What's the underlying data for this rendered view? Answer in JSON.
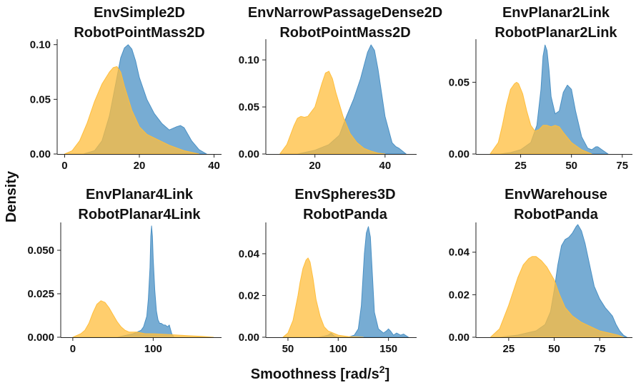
{
  "figure": {
    "xlabel": "Smoothness [rad/s",
    "xlabel_sup": "2",
    "xlabel_close": "]",
    "ylabel": "Density"
  },
  "colors": {
    "series_a": "#4a90c4",
    "series_b": "#ffbe3c",
    "overlap_note": "overlap appears olive/brown"
  },
  "chart_data": [
    {
      "type": "area",
      "title": [
        "EnvSimple2D",
        "RobotPointMass2D"
      ],
      "xlim": [
        -2,
        42
      ],
      "ylim": [
        0,
        0.105
      ],
      "xticks": [
        0,
        20,
        40
      ],
      "xtick_labels": [
        "0",
        "20",
        "40"
      ],
      "yticks": [
        0,
        0.05,
        0.1
      ],
      "ytick_labels": [
        "0.00",
        "0.05",
        "0.10"
      ],
      "series": [
        {
          "color": "#4a90c4",
          "x": [
            5,
            8,
            10,
            12,
            14,
            15,
            16,
            17,
            18,
            19,
            20,
            22,
            24,
            26,
            28,
            30,
            31,
            32,
            34,
            36,
            38
          ],
          "y": [
            0,
            0.003,
            0.012,
            0.035,
            0.07,
            0.088,
            0.097,
            0.1,
            0.096,
            0.085,
            0.07,
            0.05,
            0.037,
            0.028,
            0.022,
            0.025,
            0.026,
            0.024,
            0.012,
            0.004,
            0
          ]
        },
        {
          "color": "#ffbe3c",
          "x": [
            0,
            2,
            4,
            6,
            8,
            10,
            12,
            13,
            14,
            15,
            16,
            18,
            20,
            22,
            25,
            28,
            32,
            36
          ],
          "y": [
            0,
            0.003,
            0.012,
            0.028,
            0.048,
            0.064,
            0.075,
            0.079,
            0.08,
            0.075,
            0.062,
            0.04,
            0.025,
            0.018,
            0.013,
            0.008,
            0.003,
            0
          ]
        }
      ]
    },
    {
      "type": "area",
      "title": [
        "EnvNarrowPassageDense2D",
        "RobotPointMass2D"
      ],
      "xlim": [
        6,
        49
      ],
      "ylim": [
        0,
        0.122
      ],
      "xticks": [
        20,
        40
      ],
      "xtick_labels": [
        "20",
        "40"
      ],
      "yticks": [
        0,
        0.05,
        0.1
      ],
      "ytick_labels": [
        "0.00",
        "0.05",
        "0.10"
      ],
      "series": [
        {
          "color": "#4a90c4",
          "x": [
            15,
            20,
            24,
            27,
            29,
            31,
            33,
            35,
            36,
            37,
            38,
            40,
            42,
            43,
            44,
            46
          ],
          "y": [
            0,
            0.004,
            0.01,
            0.02,
            0.04,
            0.058,
            0.08,
            0.108,
            0.116,
            0.11,
            0.09,
            0.04,
            0.012,
            0.008,
            0.006,
            0
          ]
        },
        {
          "color": "#ffbe3c",
          "x": [
            10,
            12,
            14,
            15,
            16,
            17,
            18,
            20,
            22,
            23,
            24,
            25,
            26,
            28,
            30,
            32,
            34,
            36,
            38,
            40
          ],
          "y": [
            0,
            0.01,
            0.03,
            0.038,
            0.04,
            0.039,
            0.04,
            0.05,
            0.075,
            0.086,
            0.088,
            0.08,
            0.065,
            0.04,
            0.022,
            0.012,
            0.006,
            0.003,
            0.001,
            0
          ]
        }
      ]
    },
    {
      "type": "area",
      "title": [
        "EnvPlanar2Link",
        "RobotPlanar2Link"
      ],
      "xlim": [
        3,
        80
      ],
      "ylim": [
        0,
        0.08
      ],
      "xticks": [
        25,
        50,
        75
      ],
      "xtick_labels": [
        "25",
        "50",
        "75"
      ],
      "yticks": [
        0,
        0.05
      ],
      "ytick_labels": [
        "0.00",
        "0.05"
      ],
      "series": [
        {
          "color": "#4a90c4",
          "x": [
            15,
            20,
            25,
            30,
            33,
            35,
            36,
            37,
            38,
            39,
            40,
            42,
            44,
            46,
            48,
            50,
            52,
            55,
            58,
            60,
            62,
            63,
            65,
            68
          ],
          "y": [
            0,
            0.001,
            0.003,
            0.008,
            0.02,
            0.045,
            0.068,
            0.076,
            0.072,
            0.058,
            0.04,
            0.028,
            0.03,
            0.043,
            0.048,
            0.045,
            0.03,
            0.012,
            0.004,
            0.003,
            0.005,
            0.005,
            0.003,
            0
          ]
        },
        {
          "color": "#ffbe3c",
          "x": [
            10,
            14,
            16,
            18,
            20,
            22,
            23,
            24,
            26,
            28,
            30,
            32,
            34,
            36,
            38,
            40,
            42,
            44,
            46,
            50,
            55,
            60
          ],
          "y": [
            0,
            0.008,
            0.02,
            0.034,
            0.045,
            0.049,
            0.05,
            0.049,
            0.042,
            0.03,
            0.02,
            0.016,
            0.017,
            0.02,
            0.02,
            0.019,
            0.02,
            0.019,
            0.015,
            0.008,
            0.003,
            0
          ]
        }
      ]
    },
    {
      "type": "area",
      "title": [
        "EnvPlanar4Link",
        "RobotPlanar4Link"
      ],
      "xlim": [
        -15,
        185
      ],
      "ylim": [
        0,
        0.066
      ],
      "xticks": [
        0,
        100
      ],
      "xtick_labels": [
        "0",
        "100"
      ],
      "yticks": [
        0,
        0.025,
        0.05
      ],
      "ytick_labels": [
        "0.000",
        "0.025",
        "0.050"
      ],
      "series": [
        {
          "color": "#4a90c4",
          "x": [
            55,
            65,
            75,
            80,
            85,
            88,
            92,
            94,
            96,
            97,
            98,
            99,
            100,
            102,
            104,
            106,
            108,
            110,
            113,
            115,
            118,
            120,
            123,
            126
          ],
          "y": [
            0,
            0.001,
            0.002,
            0.003,
            0.004,
            0.006,
            0.012,
            0.022,
            0.04,
            0.058,
            0.064,
            0.058,
            0.045,
            0.027,
            0.015,
            0.01,
            0.008,
            0.008,
            0.007,
            0.007,
            0.006,
            0.007,
            0.002,
            0
          ]
        },
        {
          "color": "#ffbe3c",
          "x": [
            0,
            10,
            15,
            20,
            25,
            30,
            35,
            40,
            45,
            50,
            55,
            60,
            65,
            70,
            75,
            80,
            90,
            100,
            120,
            140,
            160,
            175
          ],
          "y": [
            0,
            0.002,
            0.004,
            0.008,
            0.014,
            0.019,
            0.021,
            0.02,
            0.017,
            0.013,
            0.009,
            0.006,
            0.004,
            0.003,
            0.003,
            0.003,
            0.002,
            0.002,
            0.0015,
            0.001,
            0.0005,
            0
          ]
        }
      ]
    },
    {
      "type": "area",
      "title": [
        "EnvSpheres3D",
        "RobotPanda"
      ],
      "xlim": [
        28,
        178
      ],
      "ylim": [
        0,
        0.055
      ],
      "xticks": [
        50,
        100,
        150
      ],
      "xtick_labels": [
        "50",
        "100",
        "150"
      ],
      "yticks": [
        0,
        0.02,
        0.04
      ],
      "ytick_labels": [
        "0.00",
        "0.02",
        "0.04"
      ],
      "series": [
        {
          "color": "#4a90c4",
          "x": [
            80,
            86,
            90,
            93,
            96,
            100,
            110,
            116,
            120,
            123,
            126,
            128,
            130,
            132,
            134,
            136,
            140,
            145,
            148,
            150,
            152,
            155,
            158,
            162,
            165,
            170
          ],
          "y": [
            0,
            0.0005,
            0.001,
            0.002,
            0.0005,
            0,
            0,
            0.001,
            0.004,
            0.015,
            0.04,
            0.05,
            0.053,
            0.048,
            0.03,
            0.012,
            0.004,
            0.002,
            0.003,
            0.004,
            0.003,
            0.001,
            0.002,
            0.001,
            0.0015,
            0
          ]
        },
        {
          "color": "#ffbe3c",
          "x": [
            45,
            50,
            55,
            60,
            62,
            65,
            68,
            70,
            72,
            75,
            78,
            82,
            86,
            90,
            95,
            100,
            110,
            125
          ],
          "y": [
            0,
            0.002,
            0.008,
            0.02,
            0.026,
            0.033,
            0.037,
            0.038,
            0.036,
            0.028,
            0.018,
            0.01,
            0.005,
            0.003,
            0.002,
            0.001,
            0.0003,
            0
          ]
        }
      ]
    },
    {
      "type": "area",
      "title": [
        "EnvWarehouse",
        "RobotPanda"
      ],
      "xlim": [
        7,
        93
      ],
      "ylim": [
        0,
        0.054
      ],
      "xticks": [
        25,
        50,
        75
      ],
      "xtick_labels": [
        "25",
        "50",
        "75"
      ],
      "yticks": [
        0,
        0.02,
        0.04
      ],
      "ytick_labels": [
        "0.00",
        "0.02",
        "0.04"
      ],
      "series": [
        {
          "color": "#4a90c4",
          "x": [
            20,
            30,
            35,
            40,
            45,
            48,
            50,
            52,
            54,
            56,
            58,
            60,
            62,
            63,
            65,
            67,
            70,
            72,
            75,
            78,
            80,
            82,
            84,
            86,
            88,
            90
          ],
          "y": [
            0,
            0.001,
            0.002,
            0.003,
            0.006,
            0.012,
            0.022,
            0.034,
            0.043,
            0.046,
            0.047,
            0.049,
            0.052,
            0.053,
            0.05,
            0.044,
            0.032,
            0.024,
            0.018,
            0.014,
            0.012,
            0.01,
            0.006,
            0.003,
            0.001,
            0
          ]
        },
        {
          "color": "#ffbe3c",
          "x": [
            15,
            20,
            25,
            30,
            33,
            36,
            38,
            40,
            43,
            46,
            50,
            53,
            56,
            60,
            65,
            70,
            75,
            80,
            85,
            88
          ],
          "y": [
            0,
            0.004,
            0.015,
            0.028,
            0.034,
            0.037,
            0.038,
            0.038,
            0.036,
            0.033,
            0.027,
            0.02,
            0.014,
            0.01,
            0.007,
            0.005,
            0.003,
            0.002,
            0.001,
            0
          ]
        }
      ]
    }
  ]
}
